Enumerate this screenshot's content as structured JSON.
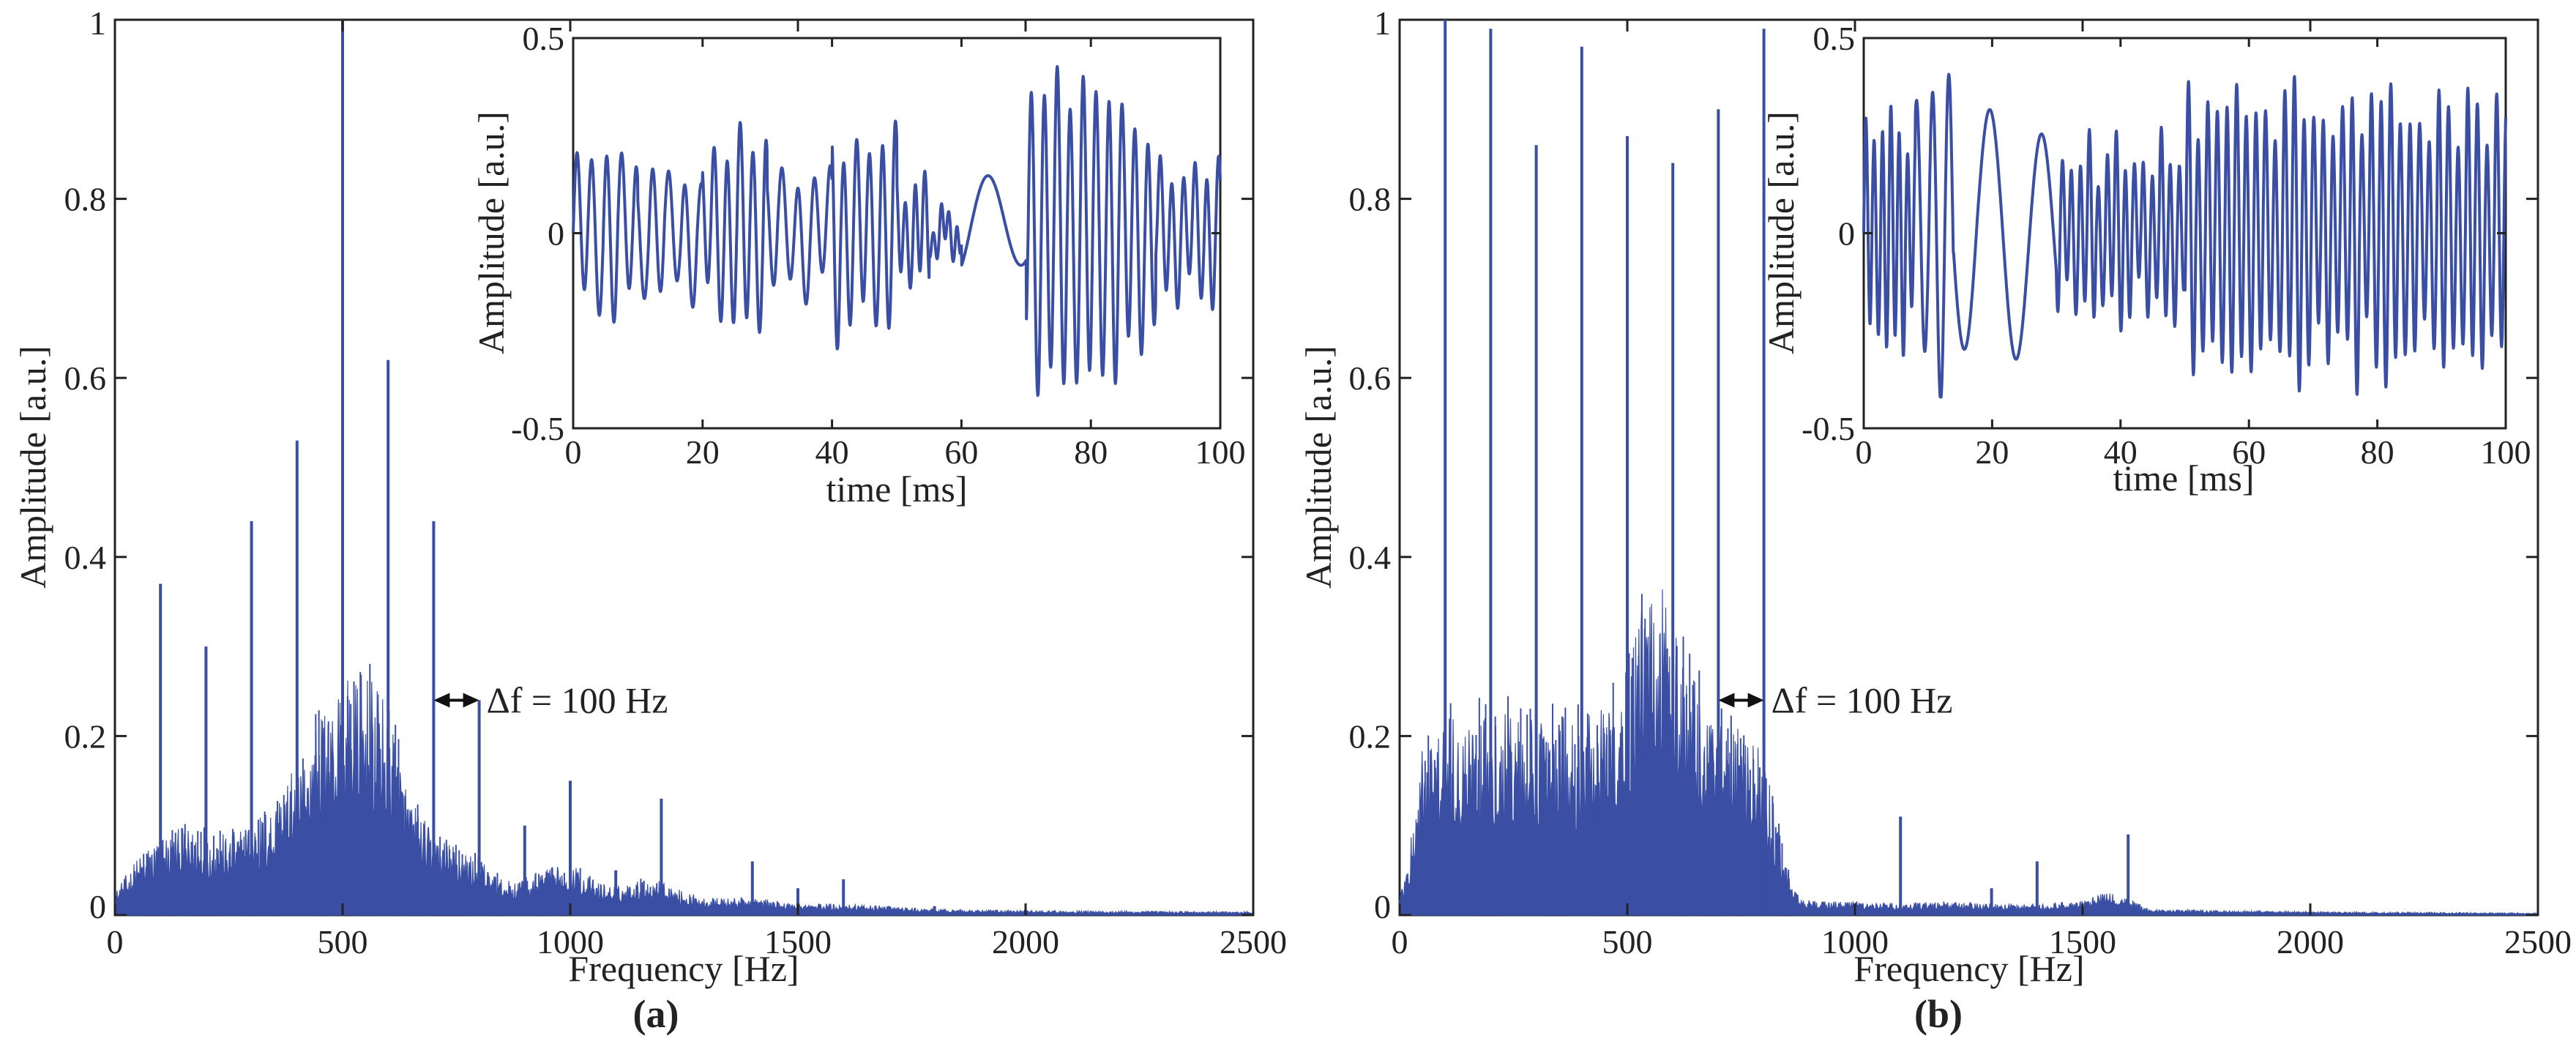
{
  "series_color": "#3A4FA3",
  "chart_data": [
    {
      "id": "a",
      "type": "line",
      "caption": "(a)",
      "xlabel": "Frequency [Hz]",
      "ylabel": "Amplitude [a.u.]",
      "xlim": [
        0,
        2500
      ],
      "ylim": [
        0,
        1
      ],
      "xticks": [
        0,
        500,
        1000,
        1500,
        2000,
        2500
      ],
      "xtick_labels": [
        "0",
        "500",
        "1000",
        "1500",
        "2000",
        "2500"
      ],
      "yticks": [
        0,
        0.2,
        0.4,
        0.6,
        0.8,
        1
      ],
      "ytick_labels": [
        "0",
        "0.2",
        "0.4",
        "0.6",
        "0.8",
        "1"
      ],
      "envelope": [
        [
          0,
          0.02
        ],
        [
          50,
          0.05
        ],
        [
          100,
          0.07
        ],
        [
          150,
          0.075
        ],
        [
          200,
          0.07
        ],
        [
          250,
          0.07
        ],
        [
          300,
          0.08
        ],
        [
          350,
          0.1
        ],
        [
          400,
          0.13
        ],
        [
          450,
          0.17
        ],
        [
          500,
          0.2
        ],
        [
          550,
          0.21
        ],
        [
          600,
          0.18
        ],
        [
          650,
          0.1
        ],
        [
          700,
          0.07
        ],
        [
          750,
          0.06
        ],
        [
          800,
          0.05
        ],
        [
          850,
          0.03
        ],
        [
          900,
          0.03
        ],
        [
          950,
          0.04
        ],
        [
          1000,
          0.045
        ],
        [
          1050,
          0.03
        ],
        [
          1100,
          0.025
        ],
        [
          1150,
          0.03
        ],
        [
          1200,
          0.03
        ],
        [
          1250,
          0.02
        ],
        [
          1300,
          0.015
        ],
        [
          1400,
          0.015
        ],
        [
          1500,
          0.01
        ],
        [
          1600,
          0.01
        ],
        [
          1800,
          0.005
        ],
        [
          2000,
          0.004
        ],
        [
          2500,
          0.003
        ]
      ],
      "peaks": [
        {
          "f": 100,
          "a": 0.37
        },
        {
          "f": 200,
          "a": 0.3
        },
        {
          "f": 300,
          "a": 0.44
        },
        {
          "f": 400,
          "a": 0.53
        },
        {
          "f": 500,
          "a": 1.0
        },
        {
          "f": 600,
          "a": 0.62
        },
        {
          "f": 700,
          "a": 0.44
        },
        {
          "f": 800,
          "a": 0.24
        },
        {
          "f": 900,
          "a": 0.1
        },
        {
          "f": 1000,
          "a": 0.15
        },
        {
          "f": 1100,
          "a": 0.05
        },
        {
          "f": 1200,
          "a": 0.13
        },
        {
          "f": 1400,
          "a": 0.06
        },
        {
          "f": 1500,
          "a": 0.03
        },
        {
          "f": 1600,
          "a": 0.04
        },
        {
          "f": 1700,
          "a": 0.01
        },
        {
          "f": 1800,
          "a": 0.01
        }
      ],
      "annotation": {
        "text": "Δf = 100 Hz",
        "x_from": 700,
        "x_to": 800,
        "y": 0.24
      },
      "inset": {
        "type": "line",
        "xlabel": "time [ms]",
        "ylabel": "Amplitude [a.u.]",
        "xlim": [
          0,
          100
        ],
        "ylim": [
          -0.5,
          0.5
        ],
        "xticks": [
          0,
          20,
          40,
          60,
          80,
          100
        ],
        "xtick_labels": [
          "0",
          "20",
          "40",
          "60",
          "80",
          "100"
        ],
        "yticks": [
          -0.5,
          0,
          0.5
        ],
        "ytick_labels": [
          "-0.5",
          "0",
          "0.5"
        ],
        "segments": [
          {
            "t0": 0,
            "t1": 10,
            "amp": 0.22,
            "period": 2.3
          },
          {
            "t0": 10,
            "t1": 20,
            "amp": 0.15,
            "period": 2.5
          },
          {
            "t0": 20,
            "t1": 30,
            "amp": 0.22,
            "period": 2.0
          },
          {
            "t0": 30,
            "t1": 40,
            "amp": 0.13,
            "period": 2.5
          },
          {
            "t0": 40,
            "t1": 50,
            "amp": 0.25,
            "period": 2.0
          },
          {
            "t0": 50,
            "t1": 55,
            "amp": 0.12,
            "period": 1.5
          },
          {
            "t0": 55,
            "t1": 60,
            "amp": 0.05,
            "period": 1.2
          },
          {
            "t0": 60,
            "t1": 70,
            "amp": 0.11,
            "period": 10
          },
          {
            "t0": 70,
            "t1": 90,
            "amp": 0.33,
            "period": 2.0
          },
          {
            "t0": 90,
            "t1": 100,
            "amp": 0.15,
            "period": 1.8
          }
        ]
      }
    },
    {
      "id": "b",
      "type": "line",
      "caption": "(b)",
      "xlabel": "Frequency [Hz]",
      "ylabel": "Amplitude [a.u.]",
      "xlim": [
        0,
        2500
      ],
      "ylim": [
        0,
        1
      ],
      "xticks": [
        0,
        500,
        1000,
        1500,
        2000,
        2500
      ],
      "xtick_labels": [
        "0",
        "500",
        "1000",
        "1500",
        "2000",
        "2500"
      ],
      "yticks": [
        0,
        0.2,
        0.4,
        0.6,
        0.8,
        1
      ],
      "ytick_labels": [
        "0",
        "0.2",
        "0.4",
        "0.6",
        "0.8",
        "1"
      ],
      "envelope": [
        [
          0,
          0.02
        ],
        [
          20,
          0.05
        ],
        [
          50,
          0.15
        ],
        [
          100,
          0.17
        ],
        [
          150,
          0.17
        ],
        [
          200,
          0.18
        ],
        [
          300,
          0.17
        ],
        [
          400,
          0.17
        ],
        [
          450,
          0.18
        ],
        [
          500,
          0.2
        ],
        [
          530,
          0.27
        ],
        [
          560,
          0.3
        ],
        [
          600,
          0.26
        ],
        [
          650,
          0.2
        ],
        [
          700,
          0.17
        ],
        [
          750,
          0.16
        ],
        [
          800,
          0.14
        ],
        [
          850,
          0.04
        ],
        [
          880,
          0.015
        ],
        [
          900,
          0.012
        ],
        [
          1000,
          0.012
        ],
        [
          1100,
          0.01
        ],
        [
          1200,
          0.012
        ],
        [
          1300,
          0.01
        ],
        [
          1400,
          0.01
        ],
        [
          1500,
          0.012
        ],
        [
          1550,
          0.02
        ],
        [
          1600,
          0.015
        ],
        [
          1650,
          0.005
        ],
        [
          2000,
          0.003
        ],
        [
          2500,
          0.002
        ]
      ],
      "peaks": [
        {
          "f": 100,
          "a": 1.0
        },
        {
          "f": 200,
          "a": 0.99
        },
        {
          "f": 300,
          "a": 0.86
        },
        {
          "f": 400,
          "a": 0.97
        },
        {
          "f": 500,
          "a": 0.87
        },
        {
          "f": 600,
          "a": 0.84
        },
        {
          "f": 700,
          "a": 0.9
        },
        {
          "f": 800,
          "a": 0.99
        },
        {
          "f": 1100,
          "a": 0.11
        },
        {
          "f": 1300,
          "a": 0.03
        },
        {
          "f": 1400,
          "a": 0.06
        },
        {
          "f": 1600,
          "a": 0.09
        }
      ],
      "annotation": {
        "text": "Δf = 100 Hz",
        "x_from": 700,
        "x_to": 800,
        "y": 0.24
      },
      "inset": {
        "type": "line",
        "xlabel": "time [ms]",
        "ylabel": "Amplitude [a.u.]",
        "xlim": [
          0,
          100
        ],
        "ylim": [
          -0.5,
          0.5
        ],
        "xticks": [
          0,
          20,
          40,
          60,
          80,
          100
        ],
        "xtick_labels": [
          "0",
          "20",
          "40",
          "60",
          "80",
          "100"
        ],
        "yticks": [
          -0.5,
          0,
          0.5
        ],
        "ytick_labels": [
          "-0.5",
          "0",
          "0.5"
        ],
        "segments": [
          {
            "t0": 0,
            "t1": 8,
            "amp": 0.25,
            "period": 1.3
          },
          {
            "t0": 8,
            "t1": 14,
            "amp": 0.35,
            "period": 2.5
          },
          {
            "t0": 14,
            "t1": 30,
            "amp": 0.3,
            "period": 8
          },
          {
            "t0": 30,
            "t1": 50,
            "amp": 0.2,
            "period": 1.4
          },
          {
            "t0": 50,
            "t1": 100,
            "amp": 0.32,
            "period": 1.5
          }
        ]
      }
    }
  ]
}
